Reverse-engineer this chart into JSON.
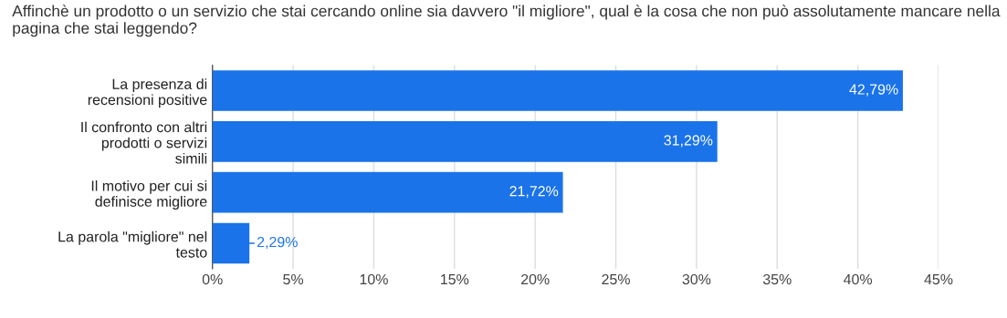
{
  "chart_data": {
    "type": "bar",
    "orientation": "horizontal",
    "title": "Affinchè un prodotto o un servizio che stai cercando online sia davvero \"il migliore\", qual è la cosa che non può assolutamente mancare nella pagina che stai leggendo?",
    "categories": [
      "La presenza di recensioni positive",
      "Il confronto con altri prodotti o servizi simili",
      "Il motivo per cui si definisce migliore",
      "La parola \"migliore\" nel testo"
    ],
    "values": [
      42.79,
      31.29,
      21.72,
      2.29
    ],
    "value_labels": [
      "42,79%",
      "31,29%",
      "21,72%",
      "2,29%"
    ],
    "color": "#1a73e8",
    "xlim": [
      0,
      45
    ],
    "xticks": [
      {
        "value": 0,
        "label": "0%"
      },
      {
        "value": 5,
        "label": "5%"
      },
      {
        "value": 10,
        "label": "10%"
      },
      {
        "value": 15,
        "label": "15%"
      },
      {
        "value": 20,
        "label": "20%"
      },
      {
        "value": 25,
        "label": "25%"
      },
      {
        "value": 30,
        "label": "30%"
      },
      {
        "value": 35,
        "label": "35%"
      },
      {
        "value": 40,
        "label": "40%"
      },
      {
        "value": 45,
        "label": "45%"
      }
    ],
    "grid": "x"
  }
}
